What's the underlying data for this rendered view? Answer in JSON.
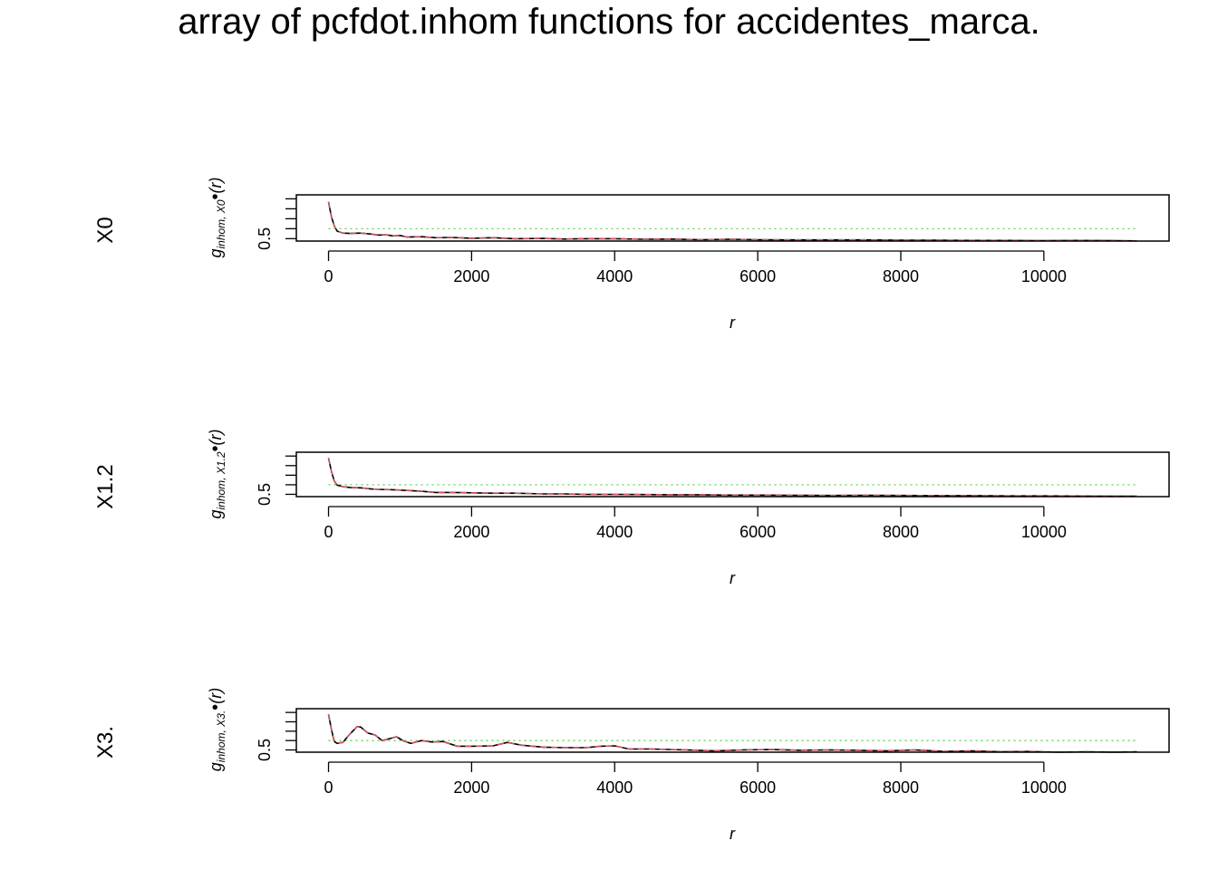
{
  "title": "array of pcfdot.inhom functions for accidentes_marca.",
  "colors": {
    "obs": "#000000",
    "trans": "#000000",
    "iso": "#DF536B",
    "theo": "#61D04F"
  },
  "chart_data": [
    {
      "type": "line",
      "row_label": "X0",
      "ylabel": {
        "main": "g",
        "sub": "inhom, X0",
        "tail": "(r)"
      },
      "xlabel": "r",
      "xlim": [
        -450,
        11750
      ],
      "ylim": [
        0.38,
        2.7
      ],
      "x_ticks": [
        0,
        2000,
        4000,
        6000,
        8000,
        10000
      ],
      "x_tick_labels": [
        "0",
        "2000",
        "4000",
        "6000",
        "8000",
        "10000"
      ],
      "y_tick_labels": [
        "0.5"
      ],
      "y_ticks": [
        0.5,
        1.0,
        1.5,
        2.0,
        2.5
      ],
      "theo": 1.0,
      "x": [
        0,
        40,
        80,
        120,
        200,
        300,
        450,
        600,
        700,
        800,
        900,
        1000,
        1100,
        1300,
        1500,
        1700,
        2000,
        2300,
        2600,
        3000,
        3300,
        3600,
        4000,
        4400,
        4800,
        5200,
        5600,
        6000,
        6500,
        7000,
        7500,
        8000,
        8500,
        9000,
        9500,
        10000,
        10500,
        11000,
        11300
      ],
      "series": [
        {
          "values": [
            2.35,
            1.6,
            1.15,
            0.88,
            0.78,
            0.76,
            0.78,
            0.73,
            0.68,
            0.7,
            0.64,
            0.66,
            0.58,
            0.6,
            0.55,
            0.56,
            0.52,
            0.55,
            0.5,
            0.51,
            0.48,
            0.5,
            0.5,
            0.47,
            0.48,
            0.45,
            0.47,
            0.45,
            0.44,
            0.44,
            0.44,
            0.42,
            0.42,
            0.41,
            0.41,
            0.4,
            0.41,
            0.4,
            0.39
          ]
        }
      ]
    },
    {
      "type": "line",
      "row_label": "X1.2",
      "ylabel": {
        "main": "g",
        "sub": "inhom, X1.2",
        "tail": "(r)"
      },
      "xlabel": "r",
      "xlim": [
        -450,
        11750
      ],
      "ylim": [
        0.38,
        2.7
      ],
      "x_ticks": [
        0,
        2000,
        4000,
        6000,
        8000,
        10000
      ],
      "x_tick_labels": [
        "0",
        "2000",
        "4000",
        "6000",
        "8000",
        "10000"
      ],
      "y_tick_labels": [
        "0.5"
      ],
      "y_ticks": [
        0.5,
        1.0,
        1.5,
        2.0,
        2.5
      ],
      "theo": 1.0,
      "x": [
        0,
        40,
        80,
        120,
        200,
        300,
        450,
        600,
        700,
        800,
        900,
        1000,
        1100,
        1300,
        1500,
        1700,
        2000,
        2300,
        2600,
        3000,
        3300,
        3600,
        4000,
        4400,
        4800,
        5200,
        5600,
        6000,
        6500,
        7000,
        7500,
        8000,
        8500,
        9000,
        9500,
        10000,
        10500,
        11000,
        11300
      ],
      "series": [
        {
          "values": [
            2.4,
            1.7,
            1.2,
            0.98,
            0.9,
            0.86,
            0.84,
            0.78,
            0.76,
            0.75,
            0.74,
            0.72,
            0.7,
            0.66,
            0.6,
            0.6,
            0.58,
            0.56,
            0.56,
            0.52,
            0.52,
            0.5,
            0.5,
            0.49,
            0.48,
            0.48,
            0.46,
            0.46,
            0.45,
            0.44,
            0.45,
            0.44,
            0.43,
            0.43,
            0.42,
            0.42,
            0.41,
            0.4,
            0.4
          ]
        }
      ]
    },
    {
      "type": "line",
      "row_label": "X3.",
      "ylabel": {
        "main": "g",
        "sub": "inhom, X3.",
        "tail": "(r)"
      },
      "xlabel": "r",
      "xlim": [
        -450,
        11750
      ],
      "ylim": [
        0.38,
        2.7
      ],
      "x_ticks": [
        0,
        2000,
        4000,
        6000,
        8000,
        10000
      ],
      "x_tick_labels": [
        "0",
        "2000",
        "4000",
        "6000",
        "8000",
        "10000"
      ],
      "y_tick_labels": [
        "0.5"
      ],
      "y_ticks": [
        0.5,
        1.0,
        1.5,
        2.0,
        2.5
      ],
      "theo": 1.0,
      "x": [
        0,
        40,
        80,
        120,
        200,
        300,
        400,
        450,
        550,
        650,
        750,
        850,
        950,
        1050,
        1150,
        1300,
        1450,
        1600,
        1800,
        2000,
        2300,
        2500,
        2700,
        3000,
        3300,
        3600,
        3800,
        4000,
        4200,
        4500,
        5000,
        5400,
        5800,
        6200,
        6600,
        7000,
        7400,
        7800,
        8200,
        8600,
        9000,
        9400,
        9800,
        10200,
        10600,
        11000,
        11300
      ],
      "series": [
        {
          "values": [
            2.4,
            1.6,
            0.95,
            0.85,
            0.9,
            1.35,
            1.75,
            1.72,
            1.4,
            1.3,
            1.0,
            1.1,
            1.2,
            0.98,
            0.85,
            1.0,
            0.92,
            0.95,
            0.7,
            0.7,
            0.72,
            0.9,
            0.75,
            0.65,
            0.62,
            0.62,
            0.7,
            0.72,
            0.55,
            0.55,
            0.5,
            0.45,
            0.5,
            0.52,
            0.48,
            0.5,
            0.48,
            0.45,
            0.5,
            0.42,
            0.45,
            0.4,
            0.42,
            0.38,
            0.4,
            0.38,
            0.4
          ]
        }
      ]
    }
  ]
}
